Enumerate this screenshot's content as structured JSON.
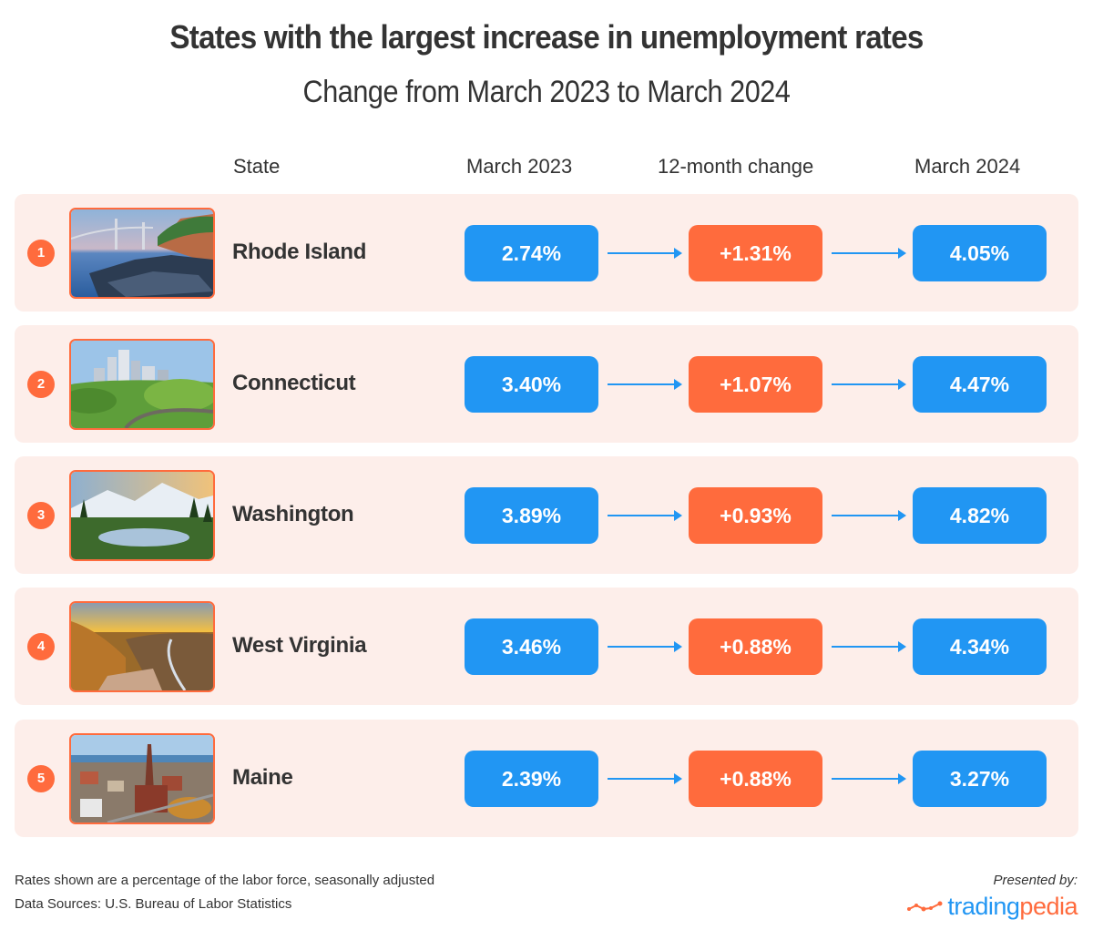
{
  "title": "States with the largest increase in unemployment rates",
  "subtitle": "Change from March 2023 to March 2024",
  "headers": {
    "state": "State",
    "march_2023": "March 2023",
    "change": "12-month change",
    "march_2024": "March 2024"
  },
  "rows": [
    {
      "rank": "1",
      "state": "Rhode Island",
      "image": "rhode-island-bridge-coast-photo",
      "march_2023": "2.74%",
      "change": "+1.31%",
      "march_2024": "4.05%"
    },
    {
      "rank": "2",
      "state": "Connecticut",
      "image": "connecticut-city-skyline-photo",
      "march_2023": "3.40%",
      "change": "+1.07%",
      "march_2024": "4.47%"
    },
    {
      "rank": "3",
      "state": "Washington",
      "image": "washington-mountain-lake-photo",
      "march_2023": "3.89%",
      "change": "+0.93%",
      "march_2024": "4.82%"
    },
    {
      "rank": "4",
      "state": "West Virginia",
      "image": "west-virginia-gorge-sunset-photo",
      "march_2023": "3.46%",
      "change": "+0.88%",
      "march_2024": "4.34%"
    },
    {
      "rank": "5",
      "state": "Maine",
      "image": "maine-town-church-photo",
      "march_2023": "2.39%",
      "change": "+0.88%",
      "march_2024": "3.27%"
    }
  ],
  "footer": {
    "note": "Rates shown are a percentage of the labor force, seasonally adjusted",
    "source": "Data Sources: U.S. Bureau of Labor Statistics",
    "presented_by": "Presented by:",
    "logo_part1": "trading",
    "logo_part2": "pedia"
  },
  "colors": {
    "blue": "#2196f3",
    "orange": "#ff6b3d",
    "row_bg": "#fdeeea",
    "text": "#333333"
  }
}
